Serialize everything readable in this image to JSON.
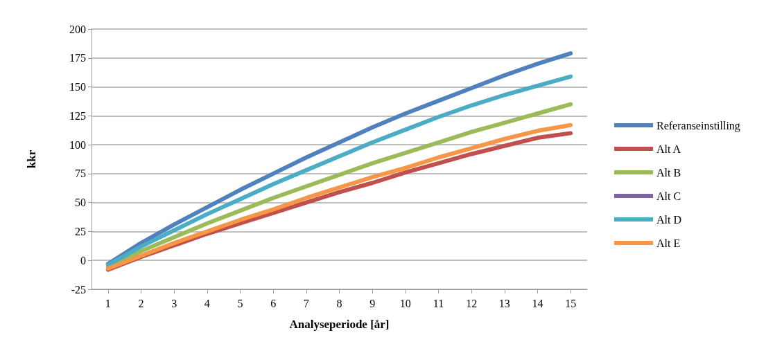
{
  "chart_data": {
    "type": "line",
    "xlabel": "Analyseperiode [år]",
    "ylabel": "kkr",
    "x": [
      1,
      2,
      3,
      4,
      5,
      6,
      7,
      8,
      9,
      10,
      11,
      12,
      13,
      14,
      15
    ],
    "xlim": [
      0.5,
      15.5
    ],
    "xticks": [
      1,
      2,
      3,
      4,
      5,
      6,
      7,
      8,
      9,
      10,
      11,
      12,
      13,
      14,
      15
    ],
    "ylim": [
      -25,
      200
    ],
    "yticks": [
      -25,
      0,
      25,
      50,
      75,
      100,
      125,
      150,
      175,
      200
    ],
    "grid": "y",
    "legend": "right",
    "marker": "none",
    "line_style": "solid",
    "series": [
      {
        "name": "Referanseinstilling",
        "color": "#4f81bd",
        "values": [
          -3,
          15,
          31,
          46,
          61,
          75,
          89,
          102,
          115,
          127,
          138,
          149,
          160,
          170,
          179
        ]
      },
      {
        "name": "Alt A",
        "color": "#c0504d",
        "values": [
          -8,
          3,
          13,
          23,
          32,
          41,
          50,
          59,
          67,
          76,
          84,
          92,
          99,
          106,
          110
        ]
      },
      {
        "name": "Alt B",
        "color": "#9bbb59",
        "values": [
          -6,
          8,
          20,
          32,
          43,
          54,
          64,
          74,
          84,
          93,
          102,
          111,
          119,
          127,
          135
        ]
      },
      {
        "name": "Alt C",
        "color": "#8064a2",
        "values": [
          null,
          null,
          null,
          null,
          null,
          null,
          null,
          null,
          null,
          null,
          null,
          null,
          null,
          null,
          null
        ]
      },
      {
        "name": "Alt D",
        "color": "#4bacc6",
        "values": [
          -4,
          12,
          26,
          40,
          53,
          66,
          78,
          90,
          102,
          113,
          124,
          134,
          143,
          151,
          159
        ]
      },
      {
        "name": "Alt E",
        "color": "#f79646",
        "values": [
          -7,
          4,
          15,
          25,
          35,
          44,
          54,
          63,
          72,
          80,
          89,
          97,
          105,
          112,
          117
        ]
      }
    ]
  }
}
